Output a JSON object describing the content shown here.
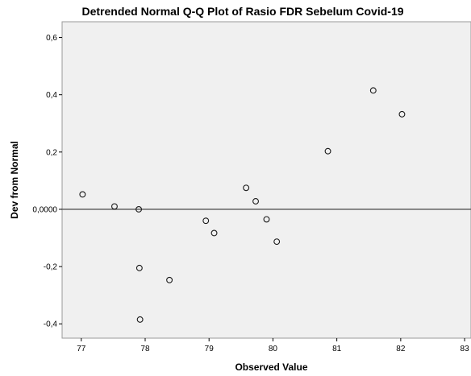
{
  "chart_data": {
    "type": "scatter",
    "title": "Detrended Normal Q-Q Plot of Rasio FDR Sebelum Covid-19",
    "xlabel": "Observed Value",
    "ylabel": "Dev from Normal",
    "xlim": [
      76.7,
      83.1
    ],
    "ylim": [
      -0.45,
      0.655
    ],
    "xticks": [
      77,
      78,
      79,
      80,
      81,
      82,
      83
    ],
    "xtick_labels": [
      "77",
      "78",
      "79",
      "80",
      "81",
      "82",
      "83"
    ],
    "yticks": [
      -0.4,
      -0.2,
      0.0,
      0.2,
      0.4,
      0.6
    ],
    "ytick_labels": [
      "-0,4",
      "-0,2",
      "0,0000",
      "0,2",
      "0,4",
      "0,6"
    ],
    "reference_line_y": 0,
    "points": [
      {
        "x": 77.02,
        "y": 0.052
      },
      {
        "x": 77.52,
        "y": 0.01
      },
      {
        "x": 77.9,
        "y": 0.0
      },
      {
        "x": 77.91,
        "y": -0.205
      },
      {
        "x": 77.92,
        "y": -0.385
      },
      {
        "x": 78.38,
        "y": -0.247
      },
      {
        "x": 78.95,
        "y": -0.04
      },
      {
        "x": 79.08,
        "y": -0.083
      },
      {
        "x": 79.58,
        "y": 0.075
      },
      {
        "x": 79.73,
        "y": 0.028
      },
      {
        "x": 79.9,
        "y": -0.035
      },
      {
        "x": 80.06,
        "y": -0.113
      },
      {
        "x": 80.86,
        "y": 0.203
      },
      {
        "x": 81.57,
        "y": 0.415
      },
      {
        "x": 82.02,
        "y": 0.332
      }
    ],
    "colors": {
      "plot_background": "#f0f0f0",
      "marker_stroke": "#1a1a1a",
      "reference_line": "#555555",
      "frame": "#999999"
    }
  }
}
